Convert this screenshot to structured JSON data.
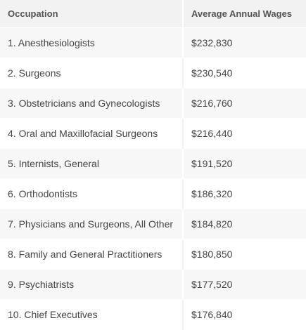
{
  "table": {
    "headers": [
      "Occupation",
      "Average Annual Wages"
    ],
    "rows": [
      [
        "1. Anesthesiologists",
        "$232,830"
      ],
      [
        "2. Surgeons",
        "$230,540"
      ],
      [
        "3. Obstetricians and Gynecologists",
        "$216,760"
      ],
      [
        "4. Oral and Maxillofacial Surgeons",
        "$216,440"
      ],
      [
        "5. Internists, General",
        "$191,520"
      ],
      [
        "6. Orthodontists",
        "$186,320"
      ],
      [
        "7. Physicians and Surgeons, All Other",
        "$184,820"
      ],
      [
        "8. Family and General Practitioners",
        "$180,850"
      ],
      [
        "9. Psychiatrists",
        "$177,520"
      ],
      [
        "10. Chief Executives",
        "$176,840"
      ]
    ]
  }
}
